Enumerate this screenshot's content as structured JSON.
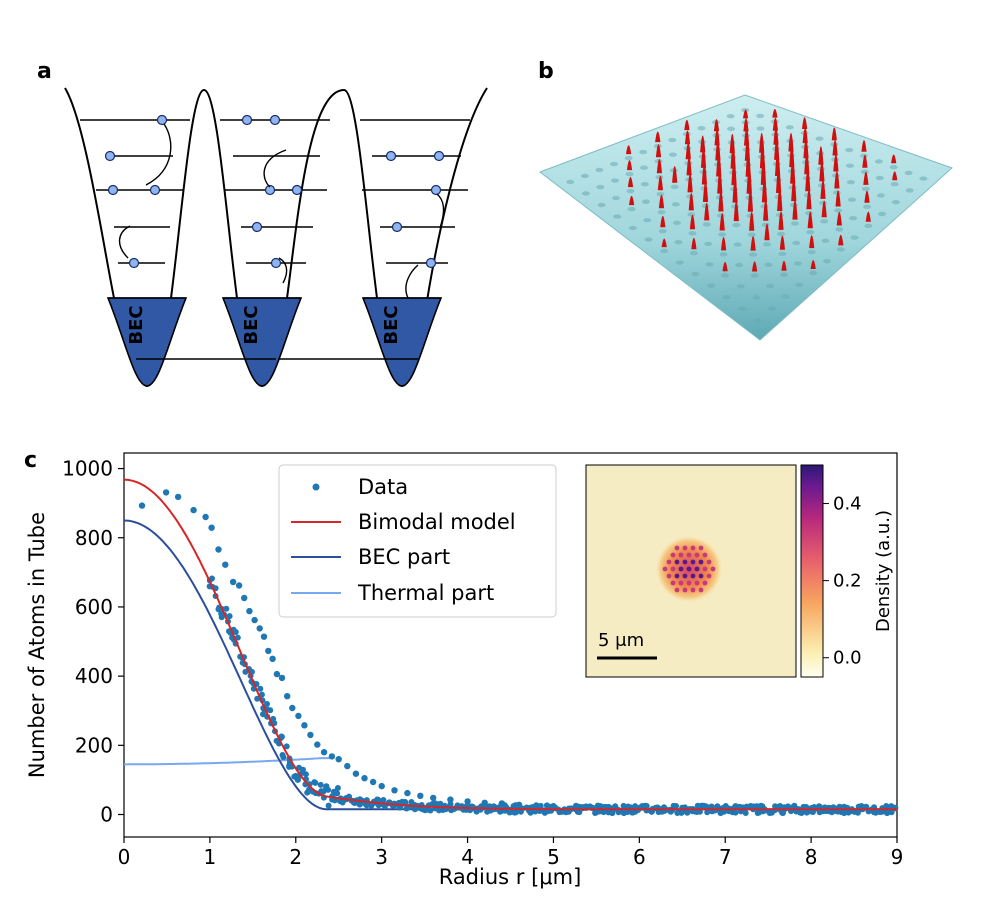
{
  "panels": {
    "a": "a",
    "b": "b",
    "c": "c"
  },
  "diagram_a": {
    "bec_label": "BEC"
  },
  "chart_data": {
    "type": "scatter",
    "xlabel": "Radius r [μm]",
    "ylabel": "Number of Atoms in Tube",
    "xlim": [
      0,
      9
    ],
    "ylim": [
      -65,
      1045
    ],
    "xticks": [
      0,
      1,
      2,
      3,
      4,
      5,
      6,
      7,
      8,
      9
    ],
    "yticks": [
      0,
      200,
      400,
      600,
      800,
      1000
    ],
    "legend_placement": "top-center",
    "series": [
      {
        "name": "Data",
        "kind": "points",
        "color": "#1f77b4",
        "x": [
          0.21,
          0.49,
          0.63,
          0.81,
          0.95,
          1.02,
          1.1,
          1.18,
          1.27,
          1.34,
          1.4,
          1.46,
          1.52,
          1.58,
          1.63,
          1.68,
          1.73,
          1.78,
          1.84,
          1.9,
          1.96,
          2.03,
          2.1,
          2.17,
          2.25,
          2.33,
          2.42,
          2.5,
          2.6,
          2.7,
          2.8,
          2.9,
          3.0,
          3.15,
          3.3,
          3.45,
          3.6,
          3.8,
          4.0,
          4.2,
          4.4,
          4.6,
          4.8,
          5.0,
          5.3,
          5.6,
          5.9,
          6.2,
          6.5,
          6.8,
          7.1,
          7.4,
          7.7,
          8.0,
          8.3,
          8.6,
          8.9
        ],
        "y": [
          893,
          931,
          918,
          880,
          860,
          829,
          766,
          722,
          672,
          662,
          626,
          588,
          562,
          538,
          514,
          473,
          450,
          406,
          395,
          342,
          308,
          285,
          258,
          230,
          202,
          180,
          168,
          160,
          140,
          118,
          105,
          94,
          82,
          70,
          62,
          54,
          48,
          43,
          38,
          34,
          32,
          28,
          26,
          24,
          22,
          21,
          20,
          19,
          19,
          18,
          18,
          17,
          17,
          17,
          16,
          16,
          16
        ]
      },
      {
        "name": "Bimodal model",
        "kind": "line",
        "color": "#d62728"
      },
      {
        "name": "BEC part",
        "kind": "line",
        "color": "#2c4f9c"
      },
      {
        "name": "Thermal part",
        "kind": "line",
        "color": "#78a8f0"
      }
    ],
    "model": {
      "bec_peak": 835,
      "bec_radius": 2.36,
      "offset": 15,
      "thermal_amp": 145,
      "thermal_floor": 15
    },
    "inset": {
      "scale_bar_label": "5 μm",
      "colorbar": {
        "label": "Density (a.u.)",
        "ticks": [
          0.0,
          0.2,
          0.4
        ],
        "tick_labels": [
          "0.0",
          "0.2",
          "0.4"
        ],
        "range": [
          -0.05,
          0.5
        ]
      }
    }
  }
}
